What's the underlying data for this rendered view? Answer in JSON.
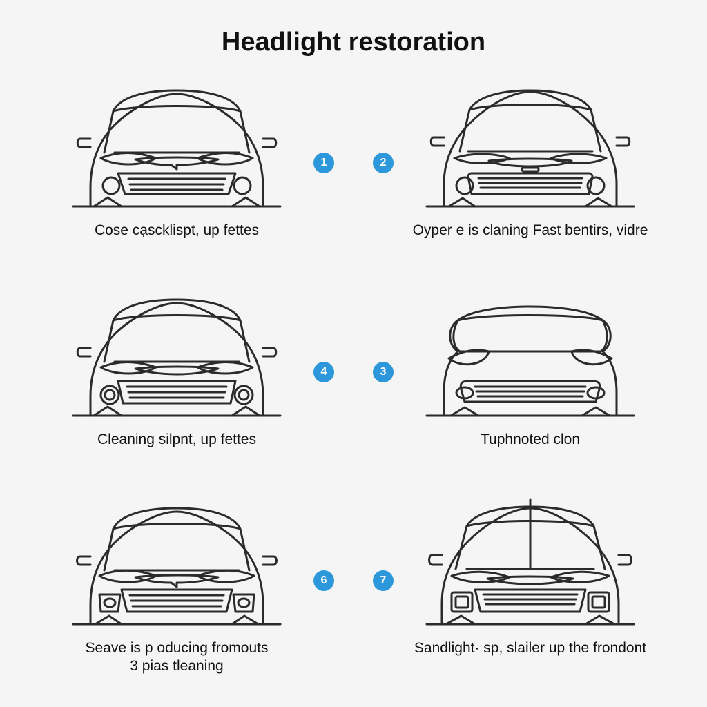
{
  "title": "Headlight restoration",
  "title_fontsize": 38,
  "caption_fontsize": 21,
  "background_color": "#f5f5f5",
  "line_color": "#2b2b2b",
  "line_width": 3,
  "badge_bg": "#2c97db",
  "badge_fg": "#ffffff",
  "badge_diameter": 30,
  "grid": {
    "cols": 2,
    "rows": 3,
    "col_gap": 80,
    "row_gap": 30
  },
  "steps": [
    {
      "number": "1",
      "caption": "Cose cạscklispt, up fettes",
      "side": "left"
    },
    {
      "number": "2",
      "caption": "Oyper e is claning Fast bentirs, vidre",
      "side": "right"
    },
    {
      "number": "4",
      "caption": "Cleaning silpnt, up fettes",
      "side": "left"
    },
    {
      "number": "3",
      "caption": "Tuphnoted clon",
      "side": "right"
    },
    {
      "number": "6",
      "caption": "Seave is p oducing fromouts\n3 pias tleaning",
      "side": "left"
    },
    {
      "number": "7",
      "caption": "Sandlight· sp, slailer up the frondont",
      "side": "right"
    }
  ],
  "car_variants": [
    "A",
    "B",
    "A2",
    "C",
    "D",
    "E"
  ]
}
